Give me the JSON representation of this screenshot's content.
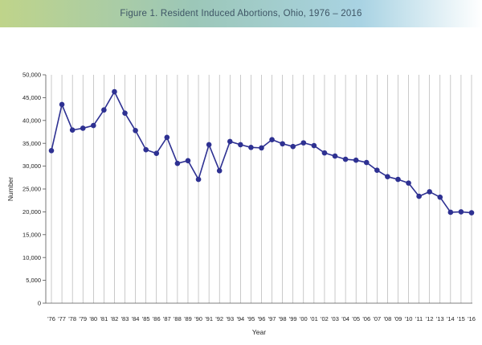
{
  "header": {
    "title": "Figure 1. Resident Induced Abortions, Ohio, 1976 – 2016"
  },
  "chart_data": {
    "type": "line",
    "title": "Figure 1. Resident Induced Abortions, Ohio, 1976 – 2016",
    "xlabel": "Year",
    "ylabel": "Number",
    "ylim": [
      0,
      50000
    ],
    "yticks": [
      0,
      5000,
      10000,
      15000,
      20000,
      25000,
      30000,
      35000,
      40000,
      45000,
      50000
    ],
    "ytick_labels": [
      "0",
      "5,000",
      "10,000",
      "15,000",
      "20,000",
      "25,000",
      "30,000",
      "35,000",
      "40,000",
      "45,000",
      "50,000"
    ],
    "categories": [
      "'76",
      "'77",
      "'78",
      "'79",
      "'80",
      "'81",
      "'82",
      "'83",
      "'84",
      "'85",
      "'86",
      "'87",
      "'88",
      "'89",
      "'90",
      "'91",
      "'92",
      "'93",
      "'94",
      "'95",
      "'96",
      "'97",
      "'98",
      "'99",
      "'00",
      "'01",
      "'02",
      "'03",
      "'04",
      "'05",
      "'06",
      "'07",
      "'08",
      "'09",
      "'10",
      "'11",
      "'12",
      "'13",
      "'14",
      "'15",
      "'16"
    ],
    "series": [
      {
        "values": [
          33400,
          43500,
          37900,
          38300,
          38900,
          42300,
          46300,
          41600,
          37800,
          33600,
          32800,
          36300,
          30600,
          31200,
          27100,
          34700,
          29000,
          35400,
          34700,
          34100,
          34000,
          35800,
          34900,
          34300,
          35100,
          34500,
          32900,
          32200,
          31500,
          31300,
          30800,
          29100,
          27700,
          27100,
          26300,
          23400,
          24400,
          23200,
          19900,
          20000,
          19800
        ]
      }
    ],
    "grid": {
      "vertical": true,
      "horizontal": false
    },
    "colors": {
      "line": "#2e3192",
      "marker": "#2e3192",
      "grid": "#a6a6a6",
      "axis": "#555555"
    }
  }
}
